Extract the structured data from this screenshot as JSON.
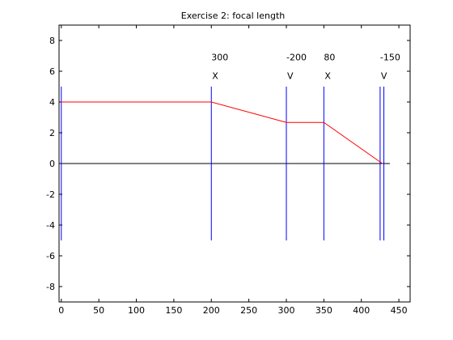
{
  "chart_data": {
    "type": "line",
    "title": "Exercise 2: focal length",
    "xlabel": "",
    "ylabel": "",
    "xlim": [
      -3,
      465
    ],
    "ylim": [
      -9,
      9
    ],
    "xticks": [
      0,
      50,
      100,
      150,
      200,
      250,
      300,
      350,
      400,
      450
    ],
    "yticks": [
      -8,
      -6,
      -4,
      -2,
      0,
      2,
      4,
      6,
      8
    ],
    "grid": false,
    "legend": "none",
    "colors": {
      "ray": "#ff0000",
      "element": "#0000ff",
      "axis_line": "#000000",
      "frame": "#000000"
    },
    "series": [
      {
        "x": [
          0,
          200,
          300,
          350,
          428
        ],
        "y": [
          4,
          4,
          2.67,
          2.67,
          0
        ]
      }
    ],
    "optical_axis": {
      "x": [
        0,
        438
      ],
      "y": [
        0,
        0
      ]
    },
    "elements": [
      {
        "x": 0,
        "y_extent": [
          -5,
          5
        ],
        "label_top": "",
        "label_bottom": ""
      },
      {
        "x": 200,
        "y_extent": [
          -5,
          5
        ],
        "label_top": "300",
        "label_bottom": "X"
      },
      {
        "x": 300,
        "y_extent": [
          -5,
          5
        ],
        "label_top": "-200",
        "label_bottom": "V"
      },
      {
        "x": 350,
        "y_extent": [
          -5,
          5
        ],
        "label_top": "80",
        "label_bottom": "X"
      },
      {
        "x": 425,
        "y_extent": [
          -5,
          5
        ],
        "label_top": "-150",
        "label_bottom": "V"
      },
      {
        "x": 430,
        "y_extent": [
          -5,
          5
        ],
        "label_top": "",
        "label_bottom": ""
      }
    ]
  }
}
